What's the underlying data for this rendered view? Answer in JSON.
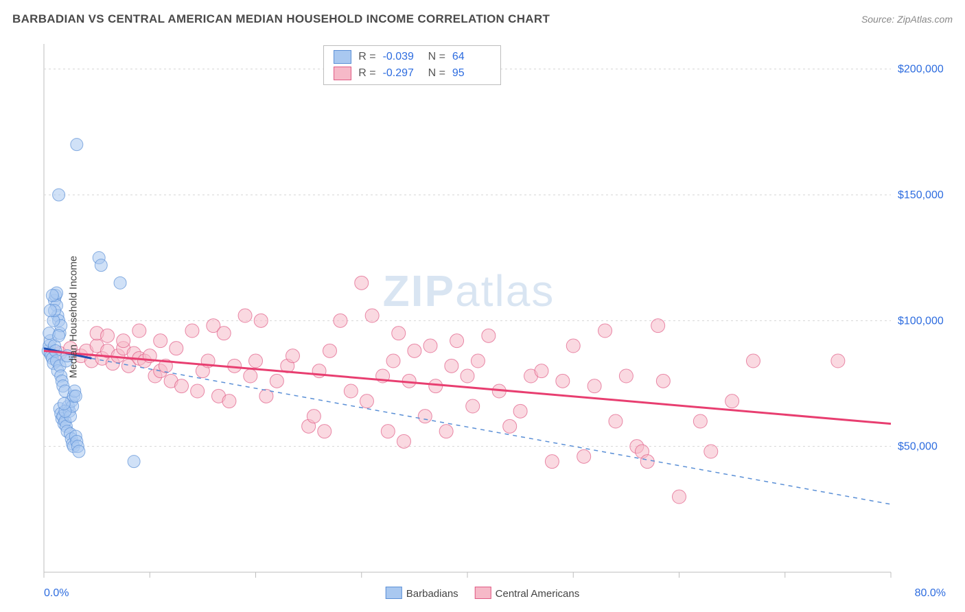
{
  "title": "BARBADIAN VS CENTRAL AMERICAN MEDIAN HOUSEHOLD INCOME CORRELATION CHART",
  "source_label": "Source: ZipAtlas.com",
  "y_axis_label": "Median Household Income",
  "x_axis": {
    "min_label": "0.0%",
    "max_label": "80.0%",
    "min": 0,
    "max": 80
  },
  "y_axis": {
    "min": 0,
    "max": 210000
  },
  "y_gridlines": [
    50000,
    100000,
    150000,
    200000
  ],
  "y_tick_labels": [
    "$50,000",
    "$100,000",
    "$150,000",
    "$200,000"
  ],
  "x_ticks": [
    0,
    10,
    20,
    30,
    40,
    50,
    60,
    70,
    80
  ],
  "grid_color": "#d5d5d5",
  "axis_color": "#bdbdbd",
  "tick_label_color": "#2d6cdf",
  "background_color": "#ffffff",
  "watermark": {
    "text_bold": "ZIP",
    "text_light": "atlas",
    "color": "rgba(120,160,210,0.28)",
    "fontsize": 64
  },
  "series": {
    "barbadians": {
      "label": "Barbadians",
      "marker_fill": "#a9c8f0",
      "marker_stroke": "#5a8fd6",
      "marker_opacity": 0.55,
      "marker_radius": 9,
      "trend_color": "#1b4fb3",
      "trend_width": 3,
      "dash_color": "#5a8fd6",
      "R": "-0.039",
      "N": "64",
      "trend": {
        "x1": 0,
        "y1": 89000,
        "x2": 4.5,
        "y2": 85000
      },
      "dash": {
        "x1": 4.5,
        "y1": 85000,
        "x2": 80,
        "y2": 27000
      },
      "points": [
        [
          0.4,
          88000
        ],
        [
          0.5,
          90000
        ],
        [
          0.6,
          87000
        ],
        [
          0.7,
          86000
        ],
        [
          0.6,
          92000
        ],
        [
          0.8,
          85000
        ],
        [
          0.5,
          95000
        ],
        [
          0.9,
          83000
        ],
        [
          1.0,
          90000
        ],
        [
          1.1,
          88000
        ],
        [
          1.2,
          84000
        ],
        [
          1.0,
          108000
        ],
        [
          1.3,
          80000
        ],
        [
          1.1,
          110000
        ],
        [
          1.5,
          82000
        ],
        [
          1.2,
          106000
        ],
        [
          1.6,
          78000
        ],
        [
          1.3,
          102000
        ],
        [
          1.7,
          76000
        ],
        [
          1.4,
          100000
        ],
        [
          1.8,
          74000
        ],
        [
          2.0,
          72000
        ],
        [
          1.5,
          65000
        ],
        [
          1.6,
          63000
        ],
        [
          2.1,
          84000
        ],
        [
          2.2,
          86000
        ],
        [
          1.7,
          61000
        ],
        [
          1.8,
          62000
        ],
        [
          1.9,
          59000
        ],
        [
          2.0,
          60000
        ],
        [
          2.1,
          58000
        ],
        [
          2.2,
          56000
        ],
        [
          2.3,
          66000
        ],
        [
          2.4,
          64000
        ],
        [
          2.5,
          62000
        ],
        [
          2.6,
          68000
        ],
        [
          2.7,
          66000
        ],
        [
          2.8,
          70000
        ],
        [
          2.5,
          55000
        ],
        [
          2.6,
          53000
        ],
        [
          2.7,
          51000
        ],
        [
          2.8,
          50000
        ],
        [
          3.0,
          54000
        ],
        [
          3.1,
          52000
        ],
        [
          3.2,
          50000
        ],
        [
          3.3,
          48000
        ],
        [
          1.5,
          95000
        ],
        [
          1.6,
          98000
        ],
        [
          1.4,
          94000
        ],
        [
          0.9,
          100000
        ],
        [
          1.0,
          104000
        ],
        [
          1.2,
          111000
        ],
        [
          0.8,
          110000
        ],
        [
          0.6,
          104000
        ],
        [
          3.1,
          170000
        ],
        [
          1.4,
          150000
        ],
        [
          5.2,
          125000
        ],
        [
          5.4,
          122000
        ],
        [
          7.2,
          115000
        ],
        [
          8.5,
          44000
        ],
        [
          2.9,
          72000
        ],
        [
          3.0,
          70000
        ],
        [
          2.0,
          64000
        ],
        [
          1.9,
          67000
        ]
      ]
    },
    "central_americans": {
      "label": "Central Americans",
      "marker_fill": "#f6b9c8",
      "marker_stroke": "#e05a84",
      "marker_opacity": 0.55,
      "marker_radius": 10,
      "trend_color": "#e83e70",
      "trend_width": 3,
      "R": "-0.297",
      "N": "95",
      "trend": {
        "x1": 0,
        "y1": 88000,
        "x2": 80,
        "y2": 59000
      },
      "points": [
        [
          1.5,
          87000
        ],
        [
          2.5,
          89000
        ],
        [
          3.5,
          86000
        ],
        [
          4.0,
          88000
        ],
        [
          4.5,
          84000
        ],
        [
          5.0,
          90000
        ],
        [
          5.5,
          85000
        ],
        [
          6.0,
          88000
        ],
        [
          6.5,
          83000
        ],
        [
          7.0,
          86000
        ],
        [
          7.5,
          89000
        ],
        [
          8.0,
          82000
        ],
        [
          8.5,
          87000
        ],
        [
          9.0,
          85000
        ],
        [
          9.5,
          84000
        ],
        [
          10.0,
          86000
        ],
        [
          10.5,
          78000
        ],
        [
          11.0,
          80000
        ],
        [
          11.5,
          82000
        ],
        [
          12.0,
          76000
        ],
        [
          12.5,
          89000
        ],
        [
          13.0,
          74000
        ],
        [
          14.0,
          96000
        ],
        [
          14.5,
          72000
        ],
        [
          15.0,
          80000
        ],
        [
          15.5,
          84000
        ],
        [
          16.0,
          98000
        ],
        [
          16.5,
          70000
        ],
        [
          17.0,
          95000
        ],
        [
          17.5,
          68000
        ],
        [
          18.0,
          82000
        ],
        [
          19.0,
          102000
        ],
        [
          19.5,
          78000
        ],
        [
          20.0,
          84000
        ],
        [
          20.5,
          100000
        ],
        [
          21.0,
          70000
        ],
        [
          22.0,
          76000
        ],
        [
          23.0,
          82000
        ],
        [
          23.5,
          86000
        ],
        [
          25.0,
          58000
        ],
        [
          25.5,
          62000
        ],
        [
          26.0,
          80000
        ],
        [
          26.5,
          56000
        ],
        [
          27.0,
          88000
        ],
        [
          28.0,
          100000
        ],
        [
          29.0,
          72000
        ],
        [
          30.0,
          115000
        ],
        [
          30.5,
          68000
        ],
        [
          31.0,
          102000
        ],
        [
          32.0,
          78000
        ],
        [
          32.5,
          56000
        ],
        [
          33.0,
          84000
        ],
        [
          33.5,
          95000
        ],
        [
          34.0,
          52000
        ],
        [
          34.5,
          76000
        ],
        [
          35.0,
          88000
        ],
        [
          36.0,
          62000
        ],
        [
          36.5,
          90000
        ],
        [
          37.0,
          74000
        ],
        [
          38.0,
          56000
        ],
        [
          38.5,
          82000
        ],
        [
          39.0,
          92000
        ],
        [
          40.0,
          78000
        ],
        [
          40.5,
          66000
        ],
        [
          41.0,
          84000
        ],
        [
          42.0,
          94000
        ],
        [
          43.0,
          72000
        ],
        [
          44.0,
          58000
        ],
        [
          45.0,
          64000
        ],
        [
          46.0,
          78000
        ],
        [
          47.0,
          80000
        ],
        [
          48.0,
          44000
        ],
        [
          49.0,
          76000
        ],
        [
          50.0,
          90000
        ],
        [
          51.0,
          46000
        ],
        [
          52.0,
          74000
        ],
        [
          53.0,
          96000
        ],
        [
          54.0,
          60000
        ],
        [
          55.0,
          78000
        ],
        [
          56.0,
          50000
        ],
        [
          56.5,
          48000
        ],
        [
          57.0,
          44000
        ],
        [
          58.0,
          98000
        ],
        [
          58.5,
          76000
        ],
        [
          62.0,
          60000
        ],
        [
          63.0,
          48000
        ],
        [
          65.0,
          68000
        ],
        [
          60.0,
          30000
        ],
        [
          67.0,
          84000
        ],
        [
          5.0,
          95000
        ],
        [
          6.0,
          94000
        ],
        [
          7.5,
          92000
        ],
        [
          9.0,
          96000
        ],
        [
          11.0,
          92000
        ],
        [
          75.0,
          84000
        ]
      ]
    }
  },
  "stats_box": {
    "rows": [
      {
        "swatch_fill": "#a9c8f0",
        "swatch_stroke": "#5a8fd6",
        "R": "-0.039",
        "N": "64"
      },
      {
        "swatch_fill": "#f6b9c8",
        "swatch_stroke": "#e05a84",
        "R": "-0.297",
        "N": "95"
      }
    ],
    "labels": {
      "R": "R =",
      "N": "N ="
    }
  },
  "bottom_legend": [
    {
      "fill": "#a9c8f0",
      "stroke": "#5a8fd6",
      "label": "Barbadians"
    },
    {
      "fill": "#f6b9c8",
      "stroke": "#e05a84",
      "label": "Central Americans"
    }
  ]
}
